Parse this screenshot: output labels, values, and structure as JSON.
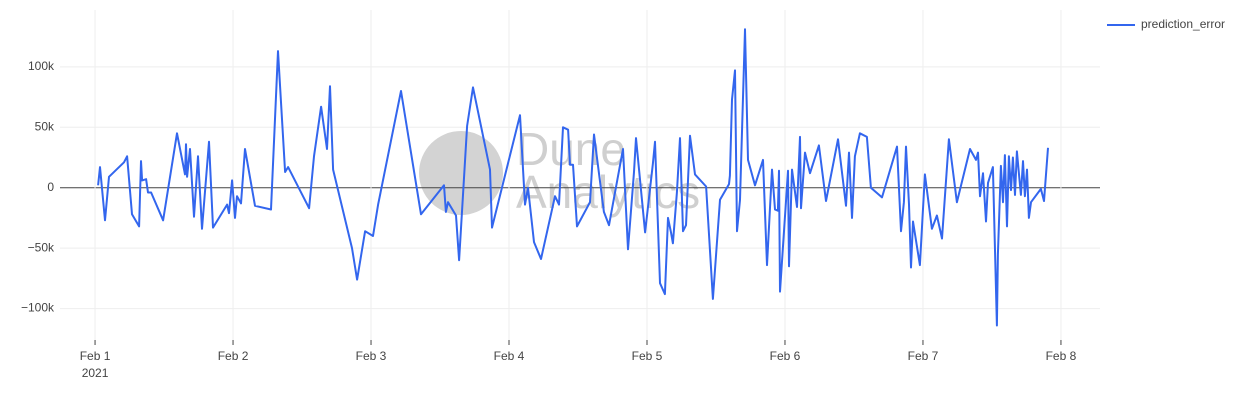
{
  "chart_data": {
    "type": "line",
    "x": [
      1.022,
      1.036,
      1.072,
      1.101,
      1.21,
      1.232,
      1.268,
      1.319,
      1.333,
      1.341,
      1.37,
      1.384,
      1.406,
      1.493,
      1.594,
      1.652,
      1.659,
      1.667,
      1.688,
      1.717,
      1.746,
      1.775,
      1.826,
      1.855,
      1.957,
      1.971,
      1.993,
      2.014,
      2.029,
      2.058,
      2.087,
      2.159,
      2.275,
      2.326,
      2.377,
      2.399,
      2.551,
      2.587,
      2.638,
      2.681,
      2.703,
      2.725,
      2.862,
      2.899,
      2.957,
      3.014,
      3.051,
      3.217,
      3.362,
      3.529,
      3.543,
      3.558,
      3.616,
      3.638,
      3.696,
      3.739,
      3.862,
      3.877,
      4.08,
      4.116,
      4.138,
      4.181,
      4.232,
      4.333,
      4.362,
      4.391,
      4.428,
      4.442,
      4.464,
      4.493,
      4.587,
      4.616,
      4.688,
      4.725,
      4.826,
      4.862,
      4.906,
      4.92,
      4.986,
      5.043,
      5.058,
      5.094,
      5.13,
      5.152,
      5.174,
      5.188,
      5.217,
      5.239,
      5.261,
      5.283,
      5.312,
      5.348,
      5.428,
      5.478,
      5.529,
      5.594,
      5.601,
      5.616,
      5.638,
      5.652,
      5.674,
      5.71,
      5.732,
      5.783,
      5.841,
      5.87,
      5.906,
      5.928,
      5.949,
      5.957,
      5.964,
      6.022,
      6.029,
      6.051,
      6.087,
      6.109,
      6.116,
      6.145,
      6.181,
      6.246,
      6.297,
      6.384,
      6.442,
      6.464,
      6.486,
      6.507,
      6.543,
      6.594,
      6.623,
      6.703,
      6.812,
      6.841,
      6.862,
      6.877,
      6.899,
      6.913,
      6.928,
      6.978,
      7.014,
      7.065,
      7.101,
      7.138,
      7.188,
      7.246,
      7.341,
      7.384,
      7.399,
      7.413,
      7.435,
      7.457,
      7.471,
      7.507,
      7.536,
      7.543,
      7.565,
      7.58,
      7.594,
      7.609,
      7.623,
      7.638,
      7.652,
      7.667,
      7.681,
      7.696,
      7.71,
      7.725,
      7.739,
      7.754,
      7.768,
      7.783,
      7.855,
      7.877,
      7.906
    ],
    "series": [
      {
        "name": "prediction_error",
        "color": "#3366ee",
        "values": [
          2000,
          17000,
          -27000,
          9000,
          21000,
          26000,
          -22000,
          -32000,
          22000,
          6000,
          7000,
          -4000,
          -4000,
          -27000,
          45000,
          11000,
          36000,
          9000,
          32000,
          -24000,
          26000,
          -34000,
          38000,
          -33000,
          -14000,
          -21000,
          6000,
          -25000,
          -7000,
          -13000,
          32000,
          -15000,
          -18000,
          113000,
          13000,
          17000,
          -17000,
          26000,
          67000,
          32000,
          84000,
          15000,
          -50000,
          -76000,
          -36000,
          -40000,
          -14000,
          80000,
          -22000,
          2000,
          -20000,
          -12000,
          -23000,
          -60000,
          51000,
          83000,
          15000,
          -33000,
          60000,
          -14000,
          0,
          -45000,
          -59000,
          -7000,
          -14000,
          50000,
          48000,
          19000,
          19000,
          -32000,
          -12000,
          44000,
          -20000,
          -31000,
          32000,
          -51000,
          13000,
          41000,
          -37000,
          20000,
          38000,
          -79000,
          -88000,
          -25000,
          -37000,
          -46000,
          -4000,
          41000,
          -36000,
          -31000,
          43000,
          11000,
          1000,
          -92000,
          -10000,
          3000,
          10000,
          73000,
          97000,
          -36000,
          -10000,
          131000,
          23000,
          2000,
          23000,
          -64000,
          15000,
          -18000,
          -19000,
          14000,
          -86000,
          14000,
          -65000,
          15000,
          -16000,
          42000,
          -17000,
          29000,
          12000,
          35000,
          -11000,
          40000,
          -15000,
          29000,
          -25000,
          26000,
          45000,
          42000,
          0,
          -8000,
          34000,
          -36000,
          -12000,
          34000,
          -14000,
          -66000,
          -28000,
          -64000,
          11000,
          -34000,
          -23000,
          -42000,
          40000,
          -12000,
          32000,
          23000,
          29000,
          -7000,
          12000,
          -28000,
          4000,
          17000,
          -114000,
          -55000,
          18000,
          -12000,
          27000,
          -32000,
          26000,
          -2000,
          25000,
          -6000,
          30000,
          11000,
          -6000,
          22000,
          -7000,
          15000,
          -25000,
          -12000,
          -1000,
          -11000,
          33000
        ]
      }
    ],
    "xlim": [
      0.746,
      8.283
    ],
    "xticks": [
      {
        "value": 1,
        "label": "Feb 1"
      },
      {
        "value": 2,
        "label": "Feb 2"
      },
      {
        "value": 3,
        "label": "Feb 3"
      },
      {
        "value": 4,
        "label": "Feb 4"
      },
      {
        "value": 5,
        "label": "Feb 5"
      },
      {
        "value": 6,
        "label": "Feb 6"
      },
      {
        "value": 7,
        "label": "Feb 7"
      },
      {
        "value": 8,
        "label": "Feb 8"
      }
    ],
    "xtick_sublabel": "2021",
    "ylim": [
      -126000,
      147000
    ],
    "yticks": [
      {
        "value": -100000,
        "label": "−100k"
      },
      {
        "value": -50000,
        "label": "−50k"
      },
      {
        "value": 0,
        "label": "0"
      },
      {
        "value": 50000,
        "label": "50k"
      },
      {
        "value": 100000,
        "label": "100k"
      }
    ],
    "grid": true,
    "legend": "top-right",
    "watermark": [
      "Dune",
      "Analytics"
    ]
  }
}
